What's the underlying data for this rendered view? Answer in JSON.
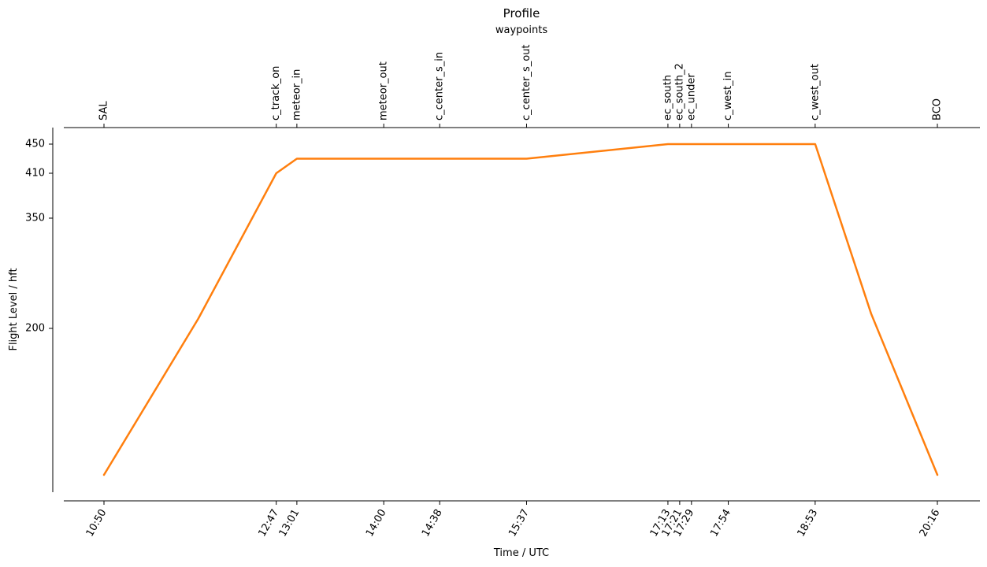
{
  "chart_data": {
    "type": "line",
    "title": "Profile",
    "subtitle": "waypoints",
    "xlabel": "Time / UTC",
    "ylabel": "Flight Level / hft",
    "ylim": [
      0,
      460
    ],
    "y_ticks": [
      {
        "value": 200,
        "label": "200"
      },
      {
        "value": 350,
        "label": "350"
      },
      {
        "value": 410,
        "label": "410"
      },
      {
        "value": 450,
        "label": "450"
      }
    ],
    "x_ticks": [
      "10:50",
      "12:47",
      "13:01",
      "14:00",
      "14:38",
      "15:37",
      "17:13",
      "17:21",
      "17:29",
      "17:54",
      "18:53",
      "20:16"
    ],
    "waypoints": [
      {
        "name": "SAL",
        "time": "10:50"
      },
      {
        "name": "c_track_on",
        "time": "12:47"
      },
      {
        "name": "meteor_in",
        "time": "13:01"
      },
      {
        "name": "meteor_out",
        "time": "14:00"
      },
      {
        "name": "c_center_s_in",
        "time": "14:38"
      },
      {
        "name": "c_center_s_out",
        "time": "15:37"
      },
      {
        "name": "ec_south",
        "time": "17:13"
      },
      {
        "name": "ec_south_2",
        "time": "17:21"
      },
      {
        "name": "ec_under",
        "time": "17:29"
      },
      {
        "name": "c_west_in",
        "time": "17:54"
      },
      {
        "name": "c_west_out",
        "time": "18:53"
      },
      {
        "name": "BCO",
        "time": "20:16"
      }
    ],
    "series": [
      {
        "color": "#ff7f0e",
        "points": [
          {
            "x": "10:50",
            "y": 0
          },
          {
            "x": "11:54",
            "y": 213
          },
          {
            "x": "12:47",
            "y": 410
          },
          {
            "x": "13:01",
            "y": 430
          },
          {
            "x": "14:00",
            "y": 430
          },
          {
            "x": "14:38",
            "y": 430
          },
          {
            "x": "15:37",
            "y": 430
          },
          {
            "x": "17:13",
            "y": 450
          },
          {
            "x": "17:21",
            "y": 450
          },
          {
            "x": "17:29",
            "y": 450
          },
          {
            "x": "17:54",
            "y": 450
          },
          {
            "x": "18:53",
            "y": 450
          },
          {
            "x": "19:31",
            "y": 220
          },
          {
            "x": "20:16",
            "y": 0
          }
        ]
      }
    ],
    "grid": false,
    "legend": "none"
  }
}
